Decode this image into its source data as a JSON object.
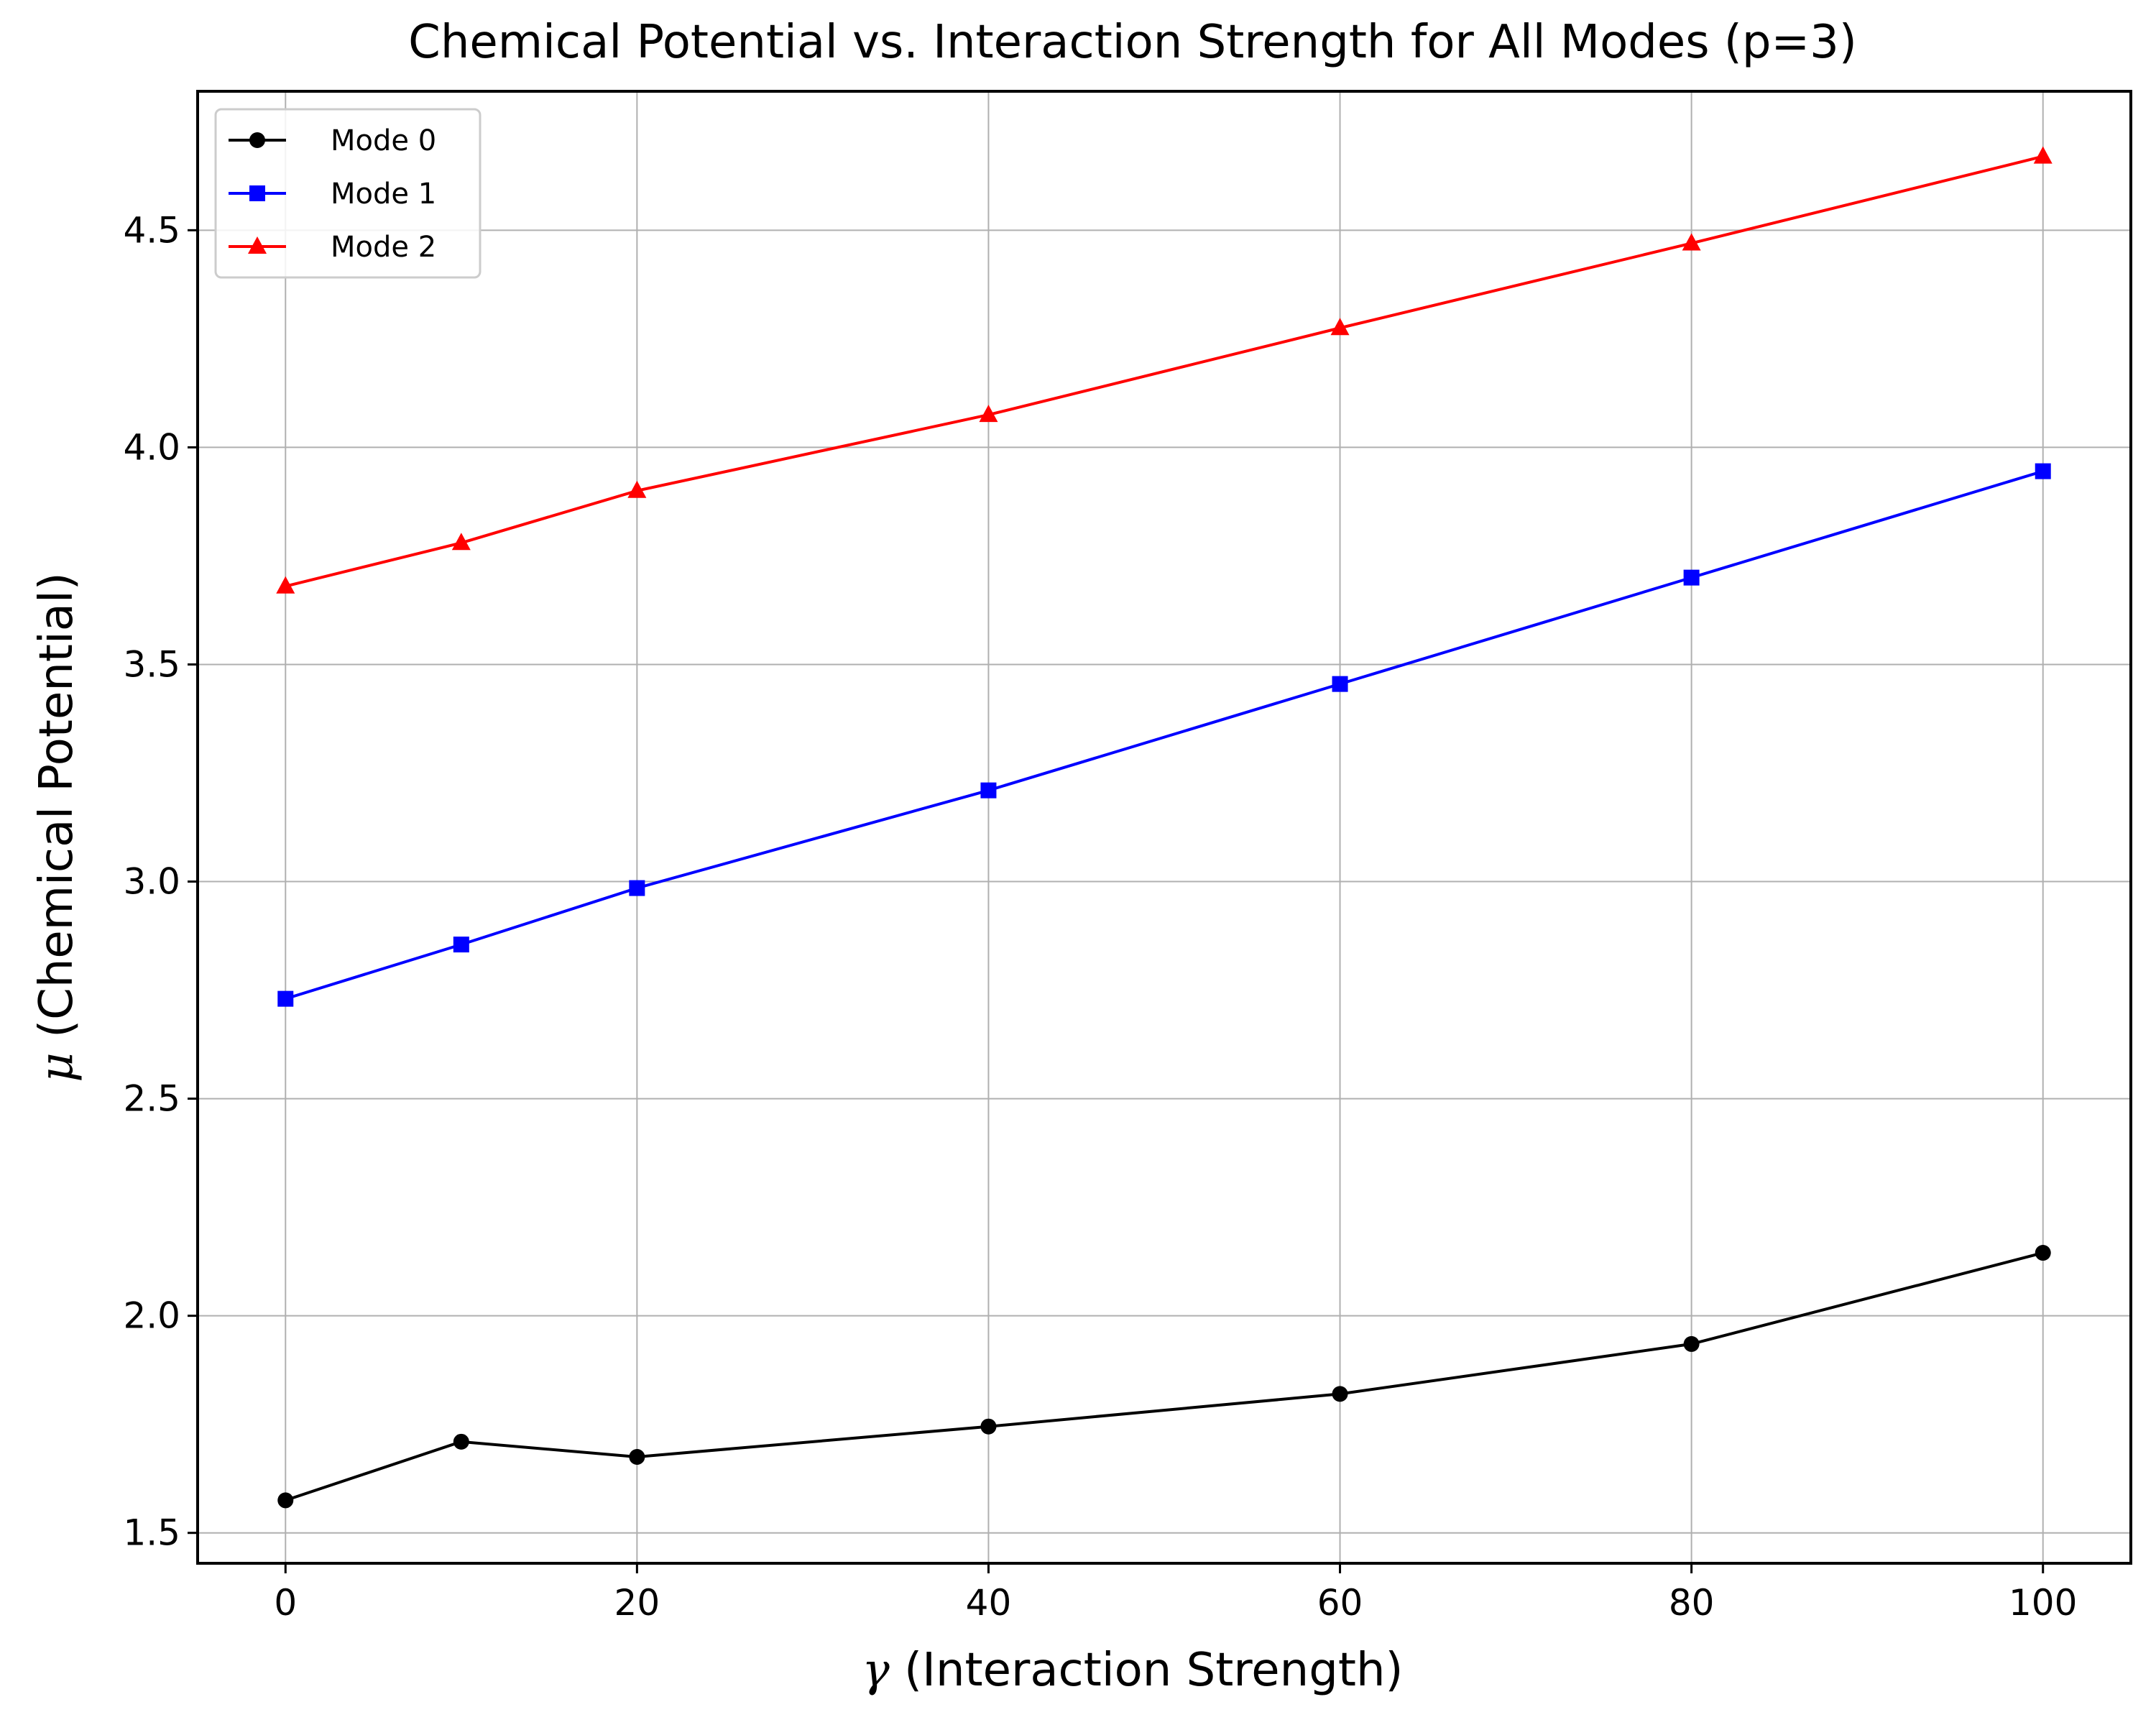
{
  "chart_data": {
    "type": "line",
    "title": "Chemical Potential vs. Interaction Strength for All Modes (p=3)",
    "xlabel_symbol": "γ",
    "xlabel_text": " (Interaction Strength)",
    "ylabel_symbol": "μ",
    "ylabel_text": " (Chemical Potential)",
    "xlim": [
      -5,
      105
    ],
    "ylim": [
      1.43,
      4.82
    ],
    "xticks": [
      0,
      20,
      40,
      60,
      80,
      100
    ],
    "xtick_labels": [
      "0",
      "20",
      "40",
      "60",
      "80",
      "100"
    ],
    "yticks": [
      1.5,
      2.0,
      2.5,
      3.0,
      3.5,
      4.0,
      4.5
    ],
    "ytick_labels": [
      "1.5",
      "2.0",
      "2.5",
      "3.0",
      "3.5",
      "4.0",
      "4.5"
    ],
    "grid": true,
    "legend_position": "top-left",
    "x": [
      0,
      10,
      20,
      40,
      60,
      80,
      100
    ],
    "series": [
      {
        "name": "Mode 0",
        "color": "#000000",
        "marker": "circle",
        "values": [
          1.575,
          1.71,
          1.675,
          1.745,
          1.82,
          1.935,
          2.145
        ]
      },
      {
        "name": "Mode 1",
        "color": "#0000ff",
        "marker": "square",
        "values": [
          2.73,
          2.855,
          2.985,
          3.21,
          3.455,
          3.7,
          3.945
        ]
      },
      {
        "name": "Mode 2",
        "color": "#ff0000",
        "marker": "triangle",
        "values": [
          3.68,
          3.78,
          3.9,
          4.075,
          4.275,
          4.47,
          4.67
        ]
      }
    ]
  }
}
